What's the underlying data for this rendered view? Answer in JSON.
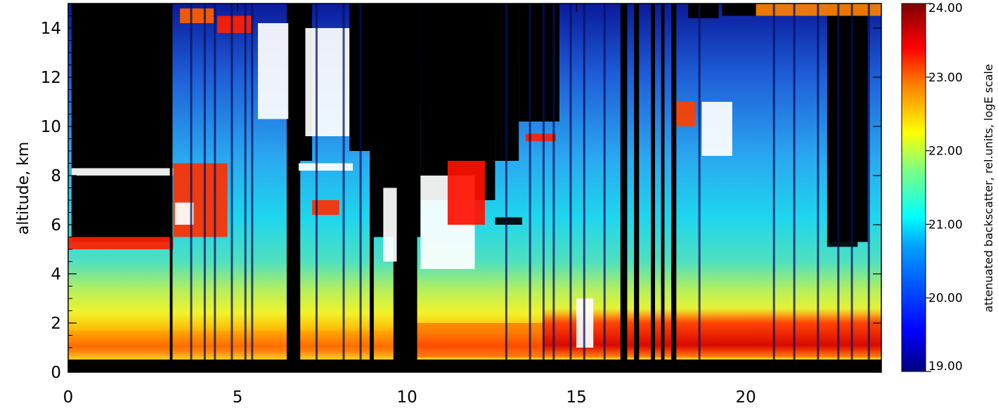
{
  "chart_data": {
    "type": "heatmap",
    "title": "",
    "xlabel": "",
    "ylabel": "altitude, km",
    "xlim": [
      0,
      24
    ],
    "ylim": [
      0,
      15
    ],
    "xticks": [
      0,
      5,
      10,
      15,
      20
    ],
    "xtick_labels": [
      "0",
      "5",
      "10",
      "15",
      "20"
    ],
    "yticks": [
      0,
      2,
      4,
      6,
      8,
      10,
      12,
      14
    ],
    "ytick_labels": [
      "0",
      "2",
      "4",
      "6",
      "8",
      "10",
      "12",
      "14"
    ],
    "colorbar": {
      "label": "attenuated backscatter, rel.units, logE scale",
      "range": [
        19.0,
        24.0
      ],
      "ticks": [
        19.0,
        20.0,
        21.0,
        22.0,
        23.0,
        24.0
      ],
      "tick_labels": [
        "19.00",
        "20.00",
        "21.00",
        "22.00",
        "23.00",
        "24.00"
      ],
      "colormap": "jet",
      "colors": [
        "#00007f",
        "#0000ff",
        "#007fff",
        "#00ffff",
        "#7fff7f",
        "#ffff00",
        "#ff7f00",
        "#ff0000",
        "#7f0000"
      ]
    },
    "no_signal_color": "#000000",
    "saturated_color": "#ffffff",
    "layers": [
      {
        "kind": "boundary_layer",
        "x_range": [
          0,
          24
        ],
        "y_range": [
          0.3,
          2.5
        ],
        "value_range": [
          21.5,
          23.8
        ]
      },
      {
        "kind": "aerosol",
        "x_range": [
          0,
          24
        ],
        "y_range": [
          2.5,
          6.0
        ],
        "value_range": [
          20.8,
          21.5
        ]
      },
      {
        "kind": "cloud_layer",
        "x_range": [
          0,
          3.1
        ],
        "y_range": [
          5.0,
          5.5
        ],
        "value_range": [
          22.5,
          24.0
        ]
      },
      {
        "kind": "cloud_layer",
        "x_range": [
          0,
          3.1
        ],
        "y_range": [
          8.0,
          8.3
        ],
        "value_range": [
          22.5,
          24.0
        ]
      },
      {
        "kind": "cloud_layer",
        "x_range": [
          3.1,
          5.5
        ],
        "y_range": [
          5.5,
          8.5
        ],
        "value_range": [
          22.5,
          24.0
        ]
      },
      {
        "kind": "cirrus",
        "x_range": [
          5.5,
          6.6
        ],
        "y_range": [
          10.2,
          14.5
        ],
        "value_range": [
          23.0,
          24.0
        ]
      },
      {
        "kind": "cirrus",
        "x_range": [
          6.9,
          8.3
        ],
        "y_range": [
          9.5,
          14.0
        ],
        "value_range": [
          23.0,
          24.0
        ]
      },
      {
        "kind": "cloud_layer",
        "x_range": [
          10.5,
          12.2
        ],
        "y_range": [
          4.0,
          8.0
        ],
        "value_range": [
          23.0,
          24.0
        ]
      },
      {
        "kind": "cirrus",
        "x_range": [
          18.7,
          19.6
        ],
        "y_range": [
          8.6,
          11.0
        ],
        "value_range": [
          23.0,
          24.0
        ]
      },
      {
        "kind": "cloud_layer",
        "x_range": [
          22.5,
          23.5
        ],
        "y_range": [
          5.2,
          5.4
        ],
        "value_range": [
          23.0,
          24.0
        ]
      }
    ],
    "signal_gaps_x": [
      3.0,
      6.5,
      6.7,
      8.9,
      9.7,
      9.9,
      10.1,
      16.3,
      16.7,
      17.2,
      17.5,
      17.8
    ]
  }
}
